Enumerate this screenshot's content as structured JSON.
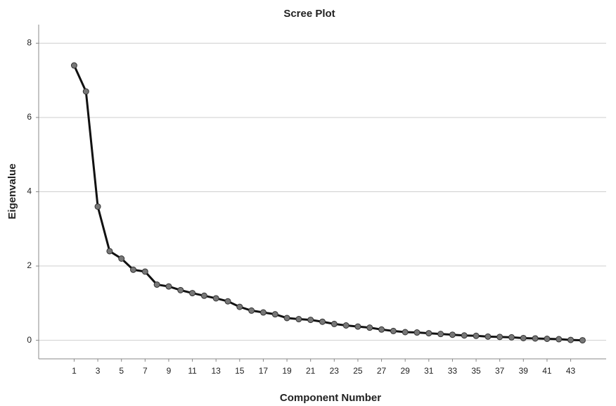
{
  "chart_data": {
    "type": "line",
    "title": "Scree Plot",
    "x_label": "Component Number",
    "y_label": "Eigenvalue",
    "x": [
      1,
      2,
      3,
      4,
      5,
      6,
      7,
      8,
      9,
      10,
      11,
      12,
      13,
      14,
      15,
      16,
      17,
      18,
      19,
      20,
      21,
      22,
      23,
      24,
      25,
      26,
      27,
      28,
      29,
      30,
      31,
      32,
      33,
      34,
      35,
      36,
      37,
      38,
      39,
      40,
      41,
      42,
      43,
      44
    ],
    "series": [
      {
        "color": "#111111",
        "values": [
          7.4,
          6.7,
          3.6,
          2.4,
          2.2,
          1.9,
          1.85,
          1.5,
          1.45,
          1.35,
          1.27,
          1.2,
          1.13,
          1.05,
          0.9,
          0.8,
          0.75,
          0.7,
          0.6,
          0.57,
          0.55,
          0.5,
          0.44,
          0.4,
          0.37,
          0.34,
          0.29,
          0.25,
          0.22,
          0.21,
          0.19,
          0.17,
          0.15,
          0.13,
          0.12,
          0.1,
          0.09,
          0.08,
          0.06,
          0.05,
          0.04,
          0.03,
          0.01,
          0.0
        ]
      }
    ],
    "xlim": [
      -2,
      46
    ],
    "ylim": [
      -0.5,
      8.5
    ],
    "xticks": [
      1,
      3,
      5,
      7,
      9,
      11,
      13,
      15,
      17,
      19,
      21,
      23,
      25,
      27,
      29,
      31,
      33,
      35,
      37,
      39,
      41,
      43
    ],
    "yticks": [
      0,
      2,
      4,
      6,
      8
    ],
    "grid": true
  }
}
